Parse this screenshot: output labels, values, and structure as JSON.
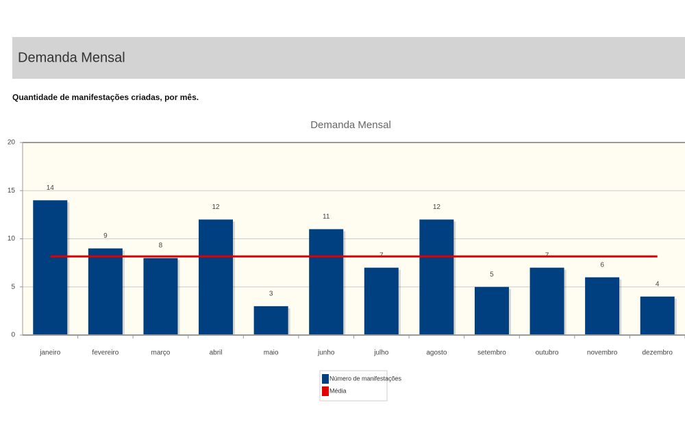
{
  "header": {
    "title": "Demanda Mensal"
  },
  "subtitle": "Quantidade de manifestações criadas, por mês.",
  "chart_data": {
    "type": "bar",
    "title": "Demanda Mensal",
    "categories": [
      "janeiro",
      "fevereiro",
      "março",
      "abril",
      "maio",
      "junho",
      "julho",
      "agosto",
      "setembro",
      "outubro",
      "novembro",
      "dezembro"
    ],
    "series": [
      {
        "name": "Número de manifestações",
        "color": "#003f80",
        "values": [
          14,
          9,
          8,
          12,
          3,
          11,
          7,
          12,
          5,
          7,
          6,
          4
        ]
      },
      {
        "name": "Média",
        "color": "#e00000",
        "type": "line",
        "values": [
          8.17,
          8.17,
          8.17,
          8.17,
          8.17,
          8.17,
          8.17,
          8.17,
          8.17,
          8.17,
          8.17,
          8.17
        ]
      }
    ],
    "ylim": [
      0,
      20
    ],
    "yticks": [
      0,
      5,
      10,
      15,
      20
    ],
    "grid": true,
    "legend": "bottom"
  }
}
